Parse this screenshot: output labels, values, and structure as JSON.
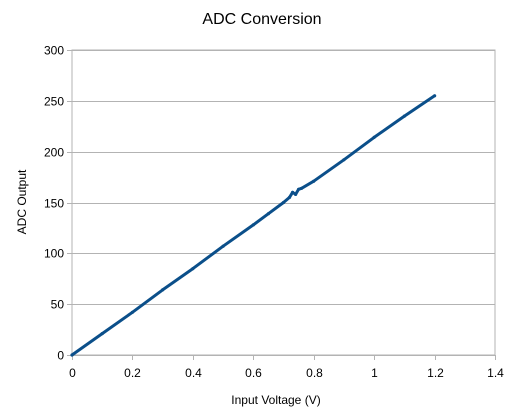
{
  "chart_data": {
    "type": "line",
    "title": "ADC Conversion",
    "xlabel": "Input Voltage (V)",
    "ylabel": "ADC Output",
    "xlim": [
      0,
      1.4
    ],
    "ylim": [
      0,
      300
    ],
    "xticks": [
      0,
      0.2,
      0.4,
      0.6,
      0.8,
      1,
      1.2,
      1.4
    ],
    "yticks": [
      0,
      50,
      100,
      150,
      200,
      250,
      300
    ],
    "xtick_labels": [
      "0",
      "0.2",
      "0.4",
      "0.6",
      "0.8",
      "1",
      "1.2",
      "1.4"
    ],
    "ytick_labels": [
      "0",
      "50",
      "100",
      "150",
      "200",
      "250",
      "300"
    ],
    "grid": "horizontal",
    "legend": "none",
    "series": [
      {
        "color": "#0b4f8a",
        "x": [
          0,
          0.1,
          0.2,
          0.3,
          0.4,
          0.5,
          0.6,
          0.65,
          0.7,
          0.72,
          0.73,
          0.74,
          0.75,
          0.76,
          0.8,
          0.9,
          1.0,
          1.1,
          1.2
        ],
        "y": [
          0,
          21,
          42,
          64,
          85,
          107,
          128,
          139,
          150,
          155,
          160,
          158,
          163,
          164,
          171,
          192,
          214,
          235,
          255
        ]
      }
    ]
  }
}
